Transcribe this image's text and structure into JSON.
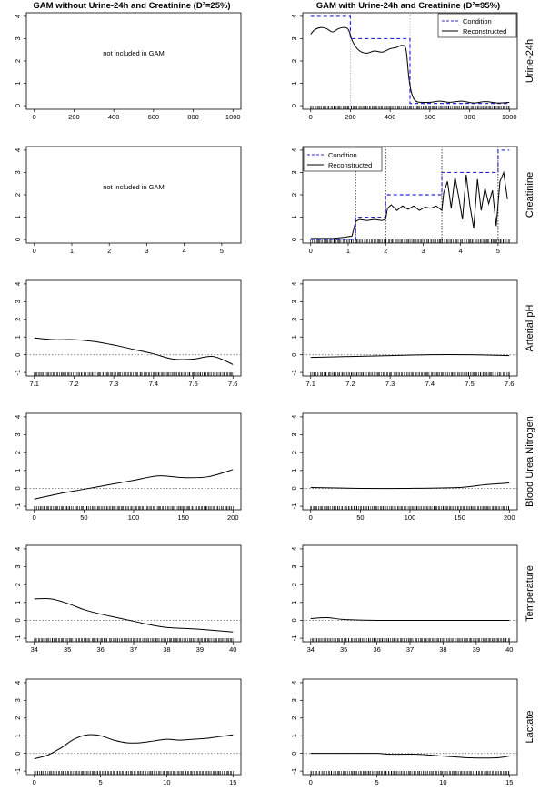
{
  "figure": {
    "titles": [
      "GAM without Urine-24h and Creatinine (D²=25%)",
      "GAM with Urine-24h and Creatinine (D²=95%)"
    ],
    "row_labels": [
      "Urine-24h",
      "Creatinine",
      "Arterial pH",
      "Blood Urea Nitrogen",
      "Temperature",
      "Lactate"
    ],
    "not_included_text": "not included in GAM",
    "legend_labels": {
      "condition": "Condition",
      "reconstructed": "Reconstructed"
    },
    "colors": {
      "reconstructed": "#000000",
      "condition": "#2b2bd6",
      "condition_guides": "#9aa8ee",
      "zero_line": "#777777",
      "frame": "#000000"
    }
  },
  "chart_data": [
    {
      "type": "line",
      "row": 0,
      "col": 0,
      "row_label": "",
      "included": false,
      "xlim": [
        0,
        1000
      ],
      "ylim": [
        0,
        4
      ],
      "x_ticks": [
        0,
        200,
        400,
        600,
        800,
        1000
      ],
      "y_ticks": [
        0,
        1,
        2,
        3,
        4
      ],
      "annotation": "not included in GAM"
    },
    {
      "type": "line",
      "row": 0,
      "col": 1,
      "row_label": "Urine-24h",
      "included": true,
      "xlim": [
        0,
        1000
      ],
      "ylim": [
        0,
        4
      ],
      "x_ticks": [
        0,
        200,
        400,
        600,
        800,
        1000
      ],
      "y_ticks": [
        0,
        1,
        2,
        3,
        4
      ],
      "zero_line": false,
      "legend": "top-right",
      "series": [
        {
          "name": "Condition",
          "style": "dashed",
          "x": [
            0,
            200,
            200,
            500,
            500,
            1000
          ],
          "y": [
            4,
            4,
            3,
            3,
            0.1,
            0.1
          ]
        },
        {
          "name": "Reconstructed",
          "style": "solid",
          "x": [
            0,
            20,
            50,
            80,
            110,
            140,
            170,
            190,
            210,
            240,
            280,
            320,
            360,
            400,
            430,
            460,
            480,
            495,
            510,
            530,
            560,
            600,
            650,
            700,
            760,
            820,
            880,
            940,
            1000
          ],
          "y": [
            3.2,
            3.4,
            3.5,
            3.45,
            3.3,
            3.45,
            3.5,
            3.4,
            2.9,
            2.5,
            2.35,
            2.45,
            2.4,
            2.55,
            2.6,
            2.7,
            2.5,
            1.2,
            0.5,
            0.2,
            0.15,
            0.15,
            0.2,
            0.15,
            0.2,
            0.12,
            0.18,
            0.12,
            0.15
          ]
        }
      ],
      "guides": [
        200,
        500
      ]
    },
    {
      "type": "line",
      "row": 1,
      "col": 0,
      "row_label": "",
      "included": false,
      "xlim": [
        0,
        5.3
      ],
      "ylim": [
        0,
        4
      ],
      "x_ticks": [
        0,
        1,
        2,
        3,
        4,
        5
      ],
      "y_ticks": [
        0,
        1,
        2,
        3,
        4
      ],
      "annotation": "not included in GAM"
    },
    {
      "type": "line",
      "row": 1,
      "col": 1,
      "row_label": "Creatinine",
      "included": true,
      "xlim": [
        0,
        5.3
      ],
      "ylim": [
        0,
        4
      ],
      "x_ticks": [
        0,
        1,
        2,
        3,
        4,
        5
      ],
      "y_ticks": [
        0,
        1,
        2,
        3,
        4
      ],
      "zero_line": false,
      "legend": "top-left",
      "series": [
        {
          "name": "Condition",
          "style": "dashed",
          "x": [
            0,
            1.2,
            1.2,
            2.0,
            2.0,
            3.5,
            3.5,
            5.0,
            5.0,
            5.3
          ],
          "y": [
            0,
            0,
            1,
            1,
            2,
            2,
            3,
            3,
            4,
            4
          ]
        },
        {
          "name": "Reconstructed",
          "style": "solid",
          "x": [
            0,
            0.3,
            0.6,
            0.9,
            1.1,
            1.2,
            1.3,
            1.5,
            1.7,
            1.9,
            2.0,
            2.05,
            2.15,
            2.3,
            2.45,
            2.6,
            2.75,
            2.9,
            3.05,
            3.2,
            3.35,
            3.5,
            3.55,
            3.65,
            3.75,
            3.85,
            3.95,
            4.05,
            4.15,
            4.25,
            4.35,
            4.45,
            4.55,
            4.65,
            4.75,
            4.85,
            4.95,
            5.05,
            5.15,
            5.25
          ],
          "y": [
            0.05,
            0.05,
            0.05,
            0.1,
            0.15,
            0.8,
            0.9,
            0.85,
            0.9,
            0.85,
            0.9,
            1.4,
            1.55,
            1.3,
            1.5,
            1.35,
            1.5,
            1.3,
            1.45,
            1.4,
            1.5,
            1.3,
            2.1,
            2.6,
            1.4,
            2.8,
            1.9,
            0.9,
            2.9,
            1.5,
            0.5,
            2.7,
            1.3,
            2.3,
            1.6,
            2.2,
            0.6,
            2.6,
            3.0,
            1.8
          ]
        }
      ],
      "guides": [
        1.2,
        2.0,
        3.5,
        5.0
      ]
    },
    {
      "type": "line",
      "row": 2,
      "col": 0,
      "row_label": "",
      "included": true,
      "xlim": [
        7.1,
        7.6
      ],
      "ylim": [
        -1,
        4
      ],
      "x_ticks": [
        7.1,
        7.2,
        7.3,
        7.4,
        7.5,
        7.6
      ],
      "y_ticks": [
        -1,
        0,
        1,
        2,
        3,
        4
      ],
      "zero_line": true,
      "series": [
        {
          "name": "",
          "style": "solid",
          "x": [
            7.1,
            7.15,
            7.2,
            7.25,
            7.3,
            7.35,
            7.4,
            7.45,
            7.5,
            7.55,
            7.6
          ],
          "y": [
            0.95,
            0.85,
            0.85,
            0.75,
            0.55,
            0.3,
            0.05,
            -0.25,
            -0.25,
            -0.1,
            -0.55
          ]
        }
      ]
    },
    {
      "type": "line",
      "row": 2,
      "col": 1,
      "row_label": "Arterial pH",
      "included": true,
      "xlim": [
        7.1,
        7.6
      ],
      "ylim": [
        -1,
        4
      ],
      "x_ticks": [
        7.1,
        7.2,
        7.3,
        7.4,
        7.5,
        7.6
      ],
      "y_ticks": [
        -1,
        0,
        1,
        2,
        3,
        4
      ],
      "zero_line": true,
      "series": [
        {
          "name": "",
          "style": "solid",
          "x": [
            7.1,
            7.2,
            7.3,
            7.4,
            7.5,
            7.6
          ],
          "y": [
            -0.15,
            -0.1,
            -0.05,
            0.0,
            0.0,
            -0.05
          ]
        }
      ]
    },
    {
      "type": "line",
      "row": 3,
      "col": 0,
      "row_label": "",
      "included": true,
      "xlim": [
        0,
        200
      ],
      "ylim": [
        -1,
        4
      ],
      "x_ticks": [
        0,
        50,
        100,
        150,
        200
      ],
      "y_ticks": [
        -1,
        0,
        1,
        2,
        3,
        4
      ],
      "zero_line": true,
      "series": [
        {
          "name": "",
          "style": "solid",
          "x": [
            0,
            25,
            50,
            75,
            100,
            125,
            150,
            175,
            200
          ],
          "y": [
            -0.6,
            -0.3,
            -0.05,
            0.2,
            0.45,
            0.7,
            0.6,
            0.65,
            1.05
          ]
        }
      ]
    },
    {
      "type": "line",
      "row": 3,
      "col": 1,
      "row_label": "Blood Urea Nitrogen",
      "included": true,
      "xlim": [
        0,
        200
      ],
      "ylim": [
        -1,
        4
      ],
      "x_ticks": [
        0,
        50,
        100,
        150,
        200
      ],
      "y_ticks": [
        -1,
        0,
        1,
        2,
        3,
        4
      ],
      "zero_line": true,
      "series": [
        {
          "name": "",
          "style": "solid",
          "x": [
            0,
            50,
            100,
            150,
            175,
            200
          ],
          "y": [
            0.05,
            0.0,
            0.0,
            0.05,
            0.2,
            0.3
          ]
        }
      ]
    },
    {
      "type": "line",
      "row": 4,
      "col": 0,
      "row_label": "",
      "included": true,
      "xlim": [
        34,
        40
      ],
      "ylim": [
        -1,
        4
      ],
      "x_ticks": [
        34,
        35,
        36,
        37,
        38,
        39,
        40
      ],
      "y_ticks": [
        -1,
        0,
        1,
        2,
        3,
        4
      ],
      "x_tick_labels": [
        "34",
        "35",
        "36",
        "37",
        "38",
        "39",
        "40"
      ],
      "zero_line": true,
      "series": [
        {
          "name": "",
          "style": "solid",
          "x": [
            34,
            34.5,
            35,
            35.5,
            36,
            36.5,
            37,
            37.5,
            38,
            38.5,
            39,
            40
          ],
          "y": [
            1.2,
            1.2,
            0.95,
            0.6,
            0.35,
            0.15,
            -0.05,
            -0.25,
            -0.4,
            -0.45,
            -0.5,
            -0.65
          ]
        }
      ]
    },
    {
      "type": "line",
      "row": 4,
      "col": 1,
      "row_label": "Temperature",
      "included": true,
      "xlim": [
        34,
        40
      ],
      "ylim": [
        -1,
        4
      ],
      "x_ticks": [
        34,
        35,
        36,
        37,
        38,
        39,
        40
      ],
      "y_ticks": [
        -1,
        0,
        1,
        2,
        3,
        4
      ],
      "x_tick_labels": [
        "34",
        "35",
        "36",
        "37",
        "38",
        "39",
        "40"
      ],
      "zero_line": true,
      "series": [
        {
          "name": "",
          "style": "solid",
          "x": [
            34,
            34.5,
            35,
            36,
            37,
            38,
            39,
            40
          ],
          "y": [
            0.1,
            0.15,
            0.05,
            0.0,
            0.0,
            0.0,
            0.0,
            0.0
          ]
        }
      ]
    },
    {
      "type": "line",
      "row": 5,
      "col": 0,
      "row_label": "",
      "included": true,
      "xlim": [
        0,
        15
      ],
      "ylim": [
        -1,
        4
      ],
      "x_ticks": [
        0,
        5,
        10,
        15
      ],
      "y_ticks": [
        -1,
        0,
        1,
        2,
        3,
        4
      ],
      "zero_line": true,
      "series": [
        {
          "name": "",
          "style": "solid",
          "x": [
            0,
            1,
            2,
            3,
            4,
            5,
            6,
            7,
            8,
            9,
            10,
            11,
            12,
            13,
            14,
            15
          ],
          "y": [
            -0.3,
            -0.1,
            0.3,
            0.8,
            1.05,
            1.0,
            0.75,
            0.6,
            0.6,
            0.7,
            0.8,
            0.75,
            0.8,
            0.85,
            0.95,
            1.05
          ]
        }
      ]
    },
    {
      "type": "line",
      "row": 5,
      "col": 1,
      "row_label": "Lactate",
      "included": true,
      "xlim": [
        0,
        15
      ],
      "ylim": [
        -1,
        4
      ],
      "x_ticks": [
        0,
        5,
        10,
        15
      ],
      "y_ticks": [
        -1,
        0,
        1,
        2,
        3,
        4
      ],
      "zero_line": true,
      "series": [
        {
          "name": "",
          "style": "solid",
          "x": [
            0,
            3,
            5,
            6,
            8,
            10,
            12,
            14,
            15
          ],
          "y": [
            0.0,
            0.0,
            0.0,
            -0.05,
            -0.05,
            -0.15,
            -0.25,
            -0.25,
            -0.15
          ]
        }
      ]
    }
  ]
}
